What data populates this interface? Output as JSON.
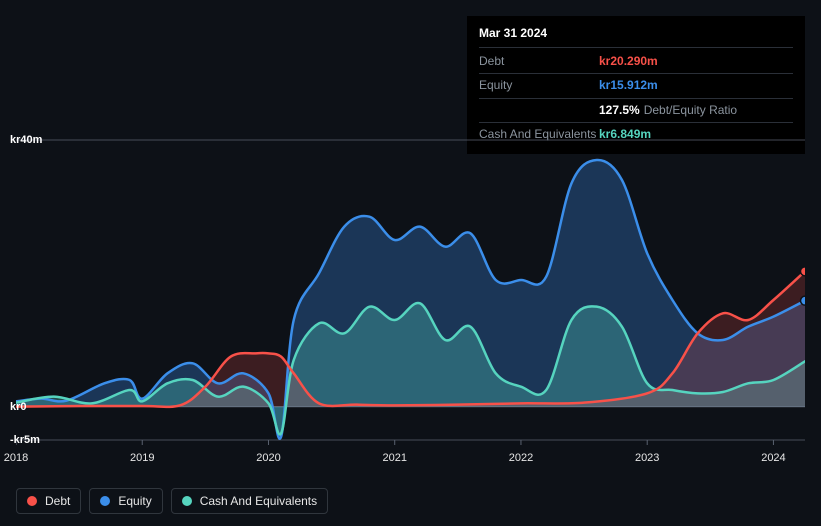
{
  "tooltip": {
    "date": "Mar 31 2024",
    "rows": [
      {
        "label": "Debt",
        "value": "kr20.290m",
        "color": "#f85149"
      },
      {
        "label": "Equity",
        "value": "kr15.912m",
        "color": "#3b8eea"
      },
      {
        "label": "",
        "value": "127.5%",
        "extra": "Debt/Equity Ratio",
        "color": "#ffffff"
      },
      {
        "label": "Cash And Equivalents",
        "value": "kr6.849m",
        "color": "#56d4bf"
      }
    ]
  },
  "chart": {
    "type": "area",
    "background": "#0d1117",
    "x_domain": [
      2018,
      2024.25
    ],
    "y_domain": [
      -5,
      40
    ],
    "y_ticks": [
      {
        "v": 40,
        "label": "kr40m"
      },
      {
        "v": 0,
        "label": "kr0"
      },
      {
        "v": -5,
        "label": "-kr5m"
      }
    ],
    "x_ticks": [
      2018,
      2019,
      2020,
      2021,
      2022,
      2023,
      2024
    ],
    "grid_color": "#5a6270",
    "series": [
      {
        "name": "Equity",
        "stroke": "#3b8eea",
        "fill": "rgba(59,142,234,0.30)",
        "stroke_width": 2.5,
        "points": [
          [
            2018.0,
            0.8
          ],
          [
            2018.2,
            1.2
          ],
          [
            2018.4,
            0.9
          ],
          [
            2018.7,
            3.5
          ],
          [
            2018.9,
            4.0
          ],
          [
            2019.0,
            1.2
          ],
          [
            2019.2,
            5.0
          ],
          [
            2019.4,
            6.5
          ],
          [
            2019.6,
            3.5
          ],
          [
            2019.8,
            5.0
          ],
          [
            2020.0,
            2.0
          ],
          [
            2020.1,
            -4.5
          ],
          [
            2020.2,
            13.0
          ],
          [
            2020.4,
            20.0
          ],
          [
            2020.6,
            27.0
          ],
          [
            2020.8,
            28.5
          ],
          [
            2021.0,
            25.0
          ],
          [
            2021.2,
            27.0
          ],
          [
            2021.4,
            24.0
          ],
          [
            2021.6,
            26.0
          ],
          [
            2021.8,
            19.0
          ],
          [
            2022.0,
            19.0
          ],
          [
            2022.2,
            19.5
          ],
          [
            2022.4,
            33.5
          ],
          [
            2022.6,
            37.0
          ],
          [
            2022.8,
            34.0
          ],
          [
            2023.0,
            23.0
          ],
          [
            2023.2,
            16.0
          ],
          [
            2023.4,
            11.0
          ],
          [
            2023.6,
            10.0
          ],
          [
            2023.8,
            12.0
          ],
          [
            2024.0,
            13.5
          ],
          [
            2024.25,
            15.9
          ]
        ]
      },
      {
        "name": "Cash And Equivalents",
        "stroke": "#56d4bf",
        "fill": "rgba(86,212,191,0.30)",
        "stroke_width": 2.5,
        "points": [
          [
            2018.0,
            0.6
          ],
          [
            2018.3,
            1.5
          ],
          [
            2018.6,
            0.5
          ],
          [
            2018.9,
            2.5
          ],
          [
            2019.0,
            0.8
          ],
          [
            2019.2,
            3.5
          ],
          [
            2019.4,
            4.0
          ],
          [
            2019.6,
            1.5
          ],
          [
            2019.8,
            3.0
          ],
          [
            2020.0,
            0.5
          ],
          [
            2020.1,
            -4.0
          ],
          [
            2020.2,
            7.0
          ],
          [
            2020.4,
            12.5
          ],
          [
            2020.6,
            11.0
          ],
          [
            2020.8,
            15.0
          ],
          [
            2021.0,
            13.0
          ],
          [
            2021.2,
            15.5
          ],
          [
            2021.4,
            10.0
          ],
          [
            2021.6,
            12.0
          ],
          [
            2021.8,
            5.0
          ],
          [
            2022.0,
            3.0
          ],
          [
            2022.2,
            2.5
          ],
          [
            2022.4,
            13.0
          ],
          [
            2022.6,
            15.0
          ],
          [
            2022.8,
            12.0
          ],
          [
            2023.0,
            3.5
          ],
          [
            2023.2,
            2.5
          ],
          [
            2023.4,
            2.0
          ],
          [
            2023.6,
            2.2
          ],
          [
            2023.8,
            3.5
          ],
          [
            2024.0,
            4.0
          ],
          [
            2024.25,
            6.8
          ]
        ]
      },
      {
        "name": "Debt",
        "stroke": "#f85149",
        "fill": "rgba(248,81,73,0.20)",
        "stroke_width": 2.5,
        "points": [
          [
            2018.0,
            0.0
          ],
          [
            2018.5,
            0.1
          ],
          [
            2019.0,
            0.1
          ],
          [
            2019.3,
            0.2
          ],
          [
            2019.5,
            3.0
          ],
          [
            2019.7,
            7.5
          ],
          [
            2019.9,
            8.0
          ],
          [
            2020.0,
            8.0
          ],
          [
            2020.1,
            7.5
          ],
          [
            2020.2,
            5.0
          ],
          [
            2020.4,
            0.5
          ],
          [
            2020.7,
            0.3
          ],
          [
            2021.0,
            0.2
          ],
          [
            2021.5,
            0.3
          ],
          [
            2022.0,
            0.5
          ],
          [
            2022.5,
            0.6
          ],
          [
            2023.0,
            2.0
          ],
          [
            2023.2,
            5.0
          ],
          [
            2023.4,
            11.0
          ],
          [
            2023.6,
            14.0
          ],
          [
            2023.8,
            13.0
          ],
          [
            2024.0,
            16.0
          ],
          [
            2024.25,
            20.3
          ]
        ]
      }
    ]
  },
  "legend": [
    {
      "label": "Debt",
      "color": "#f85149"
    },
    {
      "label": "Equity",
      "color": "#3b8eea"
    },
    {
      "label": "Cash And Equivalents",
      "color": "#56d4bf"
    }
  ],
  "end_markers": [
    {
      "series": "Debt",
      "color": "#f85149",
      "x": 2024.25,
      "y": 20.3
    },
    {
      "series": "Equity",
      "color": "#3b8eea",
      "x": 2024.25,
      "y": 15.9
    }
  ]
}
